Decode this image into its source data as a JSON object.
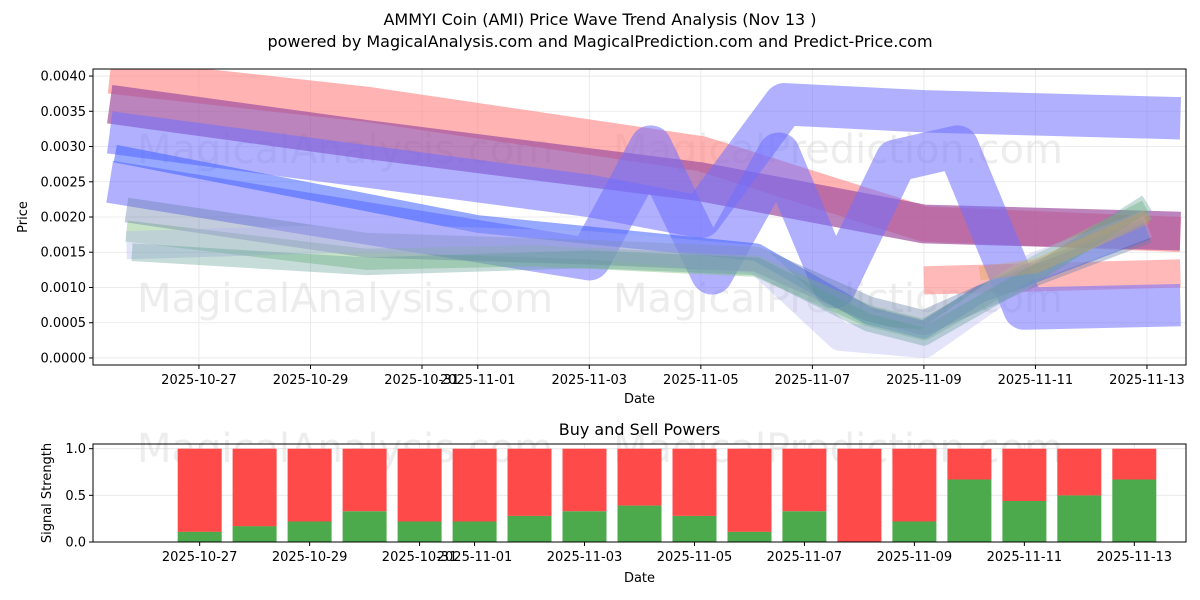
{
  "header": {
    "title": "AMMYI Coin (AMI) Price Wave Trend Analysis (Nov 13 )",
    "subtitle": "powered by MagicalAnalysis.com and MagicalPrediction.com and Predict-Price.com"
  },
  "watermarks": [
    "MagicalAnalysis.com",
    "MagicalPrediction.com"
  ],
  "chart_data": [
    {
      "type": "line",
      "title": "",
      "xlabel": "Date",
      "ylabel": "Price",
      "xlim": [
        -1.9,
        17.7
      ],
      "ylim": [
        -0.0001,
        0.0041
      ],
      "x_ticks": [
        {
          "pos": 0,
          "label": "2025-10-27"
        },
        {
          "pos": 2,
          "label": "2025-10-29"
        },
        {
          "pos": 4,
          "label": "2025-10-31"
        },
        {
          "pos": 5,
          "label": "2025-11-01"
        },
        {
          "pos": 7,
          "label": "2025-11-03"
        },
        {
          "pos": 9,
          "label": "2025-11-05"
        },
        {
          "pos": 11,
          "label": "2025-11-07"
        },
        {
          "pos": 13,
          "label": "2025-11-09"
        },
        {
          "pos": 15,
          "label": "2025-11-11"
        },
        {
          "pos": 17,
          "label": "2025-11-13"
        }
      ],
      "y_ticks": [
        "0.0000",
        "0.0005",
        "0.0010",
        "0.0015",
        "0.0020",
        "0.0025",
        "0.0030",
        "0.0035",
        "0.0040"
      ],
      "y_tick_values": [
        0,
        0.0005,
        0.001,
        0.0015,
        0.002,
        0.0025,
        0.003,
        0.0035,
        0.004
      ],
      "grid": true,
      "series": [
        {
          "name": "red-wave-top",
          "color": "#ff8080",
          "opacity": 0.6,
          "width_price": 0.0005,
          "x": [
            -1.6,
            3,
            9,
            13,
            17.6
          ],
          "y": [
            0.004,
            0.0036,
            0.0029,
            0.0019,
            0.00175
          ]
        },
        {
          "name": "red-wave-bottom",
          "color": "#ff8080",
          "opacity": 0.55,
          "width_price": 0.0004,
          "x": [
            13,
            17.6
          ],
          "y": [
            0.0011,
            0.0012
          ]
        },
        {
          "name": "purple-wave",
          "color": "#a050a0",
          "opacity": 0.7,
          "width_price": 0.00055,
          "x": [
            -1.6,
            3,
            9,
            13,
            17.6
          ],
          "y": [
            0.0036,
            0.0031,
            0.0025,
            0.0019,
            0.0018
          ]
        },
        {
          "name": "blue-wave-upper",
          "color": "#7070ff",
          "opacity": 0.55,
          "width_price": 0.0006,
          "x": [
            -1.6,
            7,
            9,
            10.5,
            13,
            17.6
          ],
          "y": [
            0.0032,
            0.0023,
            0.002,
            0.0036,
            0.0035,
            0.0034
          ]
        },
        {
          "name": "blue-wave-zigzag",
          "color": "#7070ff",
          "opacity": 0.55,
          "width_price": 0.0006,
          "x": [
            -1.6,
            7,
            8.1,
            9.2,
            10.4,
            11.4,
            12.5,
            13.6,
            14.8,
            17.6
          ],
          "y": [
            0.0025,
            0.0014,
            0.003,
            0.0012,
            0.0029,
            0.001,
            0.0028,
            0.003,
            0.0007,
            0.00075
          ]
        },
        {
          "name": "blue-wave-mid",
          "color": "#4060ff",
          "opacity": 0.55,
          "width_price": 0.00025,
          "x": [
            -1.5,
            5,
            10,
            12,
            13,
            14,
            17
          ],
          "y": [
            0.0029,
            0.0019,
            0.0015,
            0.0006,
            0.0004,
            0.0009,
            0.0018
          ]
        },
        {
          "name": "green-wave",
          "color": "#80c080",
          "opacity": 0.45,
          "width_price": 0.0003,
          "x": [
            -1.3,
            3,
            6,
            10,
            12,
            13,
            15,
            17
          ],
          "y": [
            0.0018,
            0.0014,
            0.00145,
            0.0013,
            0.0006,
            0.0004,
            0.0013,
            0.0021
          ]
        },
        {
          "name": "slate-wave",
          "color": "#6a7fa8",
          "opacity": 0.4,
          "width_price": 0.00035,
          "x": [
            -1.3,
            3,
            7,
            10,
            12,
            13,
            15,
            17
          ],
          "y": [
            0.0021,
            0.0016,
            0.0015,
            0.0014,
            0.0007,
            0.0005,
            0.0012,
            0.0018
          ]
        },
        {
          "name": "lavender-wave",
          "color": "#b0b0f0",
          "opacity": 0.35,
          "width_price": 0.0004,
          "x": [
            -1.3,
            3,
            7,
            10,
            11.5,
            13,
            15,
            17
          ],
          "y": [
            0.0016,
            0.0017,
            0.0016,
            0.0014,
            0.0003,
            0.0002,
            0.0013,
            0.0019
          ]
        },
        {
          "name": "teal-wave",
          "color": "#5a9a90",
          "opacity": 0.35,
          "width_price": 0.00025,
          "x": [
            -1.2,
            3,
            7,
            10,
            12,
            13,
            15,
            17
          ],
          "y": [
            0.0015,
            0.0013,
            0.0014,
            0.0013,
            0.0005,
            0.0003,
            0.0012,
            0.0022
          ]
        },
        {
          "name": "orange-wave",
          "color": "#d0a050",
          "opacity": 0.35,
          "width_price": 0.0002,
          "x": [
            14,
            15,
            17
          ],
          "y": [
            0.0012,
            0.0013,
            0.002
          ]
        }
      ]
    },
    {
      "type": "bar",
      "title": "Buy and Sell Powers",
      "xlabel": "Date",
      "ylabel": "Signal Strength",
      "ylim": [
        0,
        1.05
      ],
      "x_ticks": [
        {
          "pos": 0,
          "label": "2025-10-27"
        },
        {
          "pos": 2,
          "label": "2025-10-29"
        },
        {
          "pos": 4,
          "label": "2025-10-31"
        },
        {
          "pos": 5,
          "label": "2025-11-01"
        },
        {
          "pos": 7,
          "label": "2025-11-03"
        },
        {
          "pos": 9,
          "label": "2025-11-05"
        },
        {
          "pos": 11,
          "label": "2025-11-07"
        },
        {
          "pos": 13,
          "label": "2025-11-09"
        },
        {
          "pos": 15,
          "label": "2025-11-11"
        },
        {
          "pos": 17,
          "label": "2025-11-13"
        }
      ],
      "y_ticks": [
        "0.0",
        "0.5",
        "1.0"
      ],
      "y_tick_values": [
        0,
        0.5,
        1.0
      ],
      "grid": true,
      "categories": [
        "2025-10-27",
        "2025-10-28",
        "2025-10-29",
        "2025-10-30",
        "2025-10-31",
        "2025-11-01",
        "2025-11-02",
        "2025-11-03",
        "2025-11-04",
        "2025-11-05",
        "2025-11-06",
        "2025-11-07",
        "2025-11-08",
        "2025-11-09",
        "2025-11-10",
        "2025-11-11",
        "2025-11-12",
        "2025-11-13"
      ],
      "series": [
        {
          "name": "Buy",
          "color": "#4caa4c",
          "values": [
            0.11,
            0.17,
            0.22,
            0.33,
            0.22,
            0.22,
            0.28,
            0.33,
            0.39,
            0.28,
            0.11,
            0.33,
            0.0,
            0.22,
            0.67,
            0.44,
            0.5,
            0.67
          ]
        },
        {
          "name": "Sell",
          "color": "#ff4a4a",
          "values": [
            0.89,
            0.83,
            0.78,
            0.67,
            0.78,
            0.78,
            0.72,
            0.67,
            0.61,
            0.72,
            0.89,
            0.67,
            1.0,
            0.78,
            0.33,
            0.56,
            0.5,
            0.33
          ]
        }
      ]
    }
  ]
}
